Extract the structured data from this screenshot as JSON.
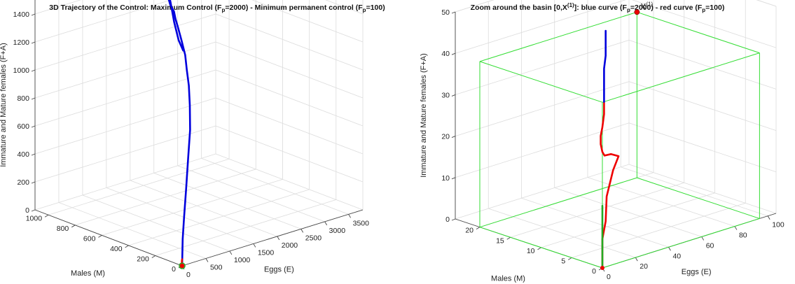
{
  "chart_data": [
    {
      "type": "line",
      "projection": "3d",
      "title_parts": [
        "3D Trajectory of the Control: Maximum Control (F",
        "p",
        "=2000) - Minimum permanent control (F",
        "p",
        "=100)"
      ],
      "xlabel": "Eggs (E)",
      "ylabel": "Males (M)",
      "zlabel": "Immature and Mature females (F+A)",
      "xlim": [
        0,
        3800
      ],
      "ylim": [
        0,
        1100
      ],
      "zlim": [
        0,
        1500
      ],
      "xticks": [
        0,
        500,
        1000,
        1500,
        2000,
        2500,
        3000,
        3500
      ],
      "yticks": [
        0,
        200,
        400,
        600,
        800,
        1000
      ],
      "zticks": [
        0,
        200,
        400,
        600,
        800,
        1000,
        1200,
        1400
      ],
      "grid": true,
      "series": [
        {
          "color": "#0000dd",
          "points": [
            [
              0,
              0,
              0
            ],
            [
              60,
              20,
              60
            ],
            [
              180,
              60,
              150
            ],
            [
              350,
              110,
              270
            ],
            [
              560,
              170,
              420
            ],
            [
              800,
              240,
              590
            ],
            [
              1040,
              310,
              750
            ],
            [
              1230,
              380,
              880
            ],
            [
              1350,
              430,
              990
            ],
            [
              1420,
              470,
              1080
            ],
            [
              1470,
              500,
              1170
            ],
            [
              1480,
              530,
              1260
            ],
            [
              1490,
              560,
              1340
            ],
            [
              1520,
              590,
              1390
            ],
            [
              1600,
              630,
              1420
            ],
            [
              1720,
              700,
              1430
            ],
            [
              1850,
              760,
              1440
            ],
            [
              1930,
              790,
              1460
            ],
            [
              1850,
              760,
              1480
            ],
            [
              1500,
              620,
              1500
            ],
            [
              900,
              380,
              1510
            ],
            [
              350,
              150,
              1520
            ],
            [
              50,
              10,
              1530
            ]
          ]
        },
        {
          "color": "#ee0000",
          "points": [
            [
              0,
              0,
              0
            ],
            [
              20,
              10,
              5
            ],
            [
              45,
              18,
              15
            ],
            [
              30,
              12,
              30
            ],
            [
              5,
              2,
              45
            ]
          ]
        }
      ],
      "markers": [
        {
          "color": "#22aa22",
          "x": 0,
          "y": 0,
          "z": 0
        },
        {
          "color": "#ee0000",
          "x": 0,
          "y": 0,
          "z": 0
        }
      ]
    },
    {
      "type": "line",
      "projection": "3d",
      "title_parts": [
        "Zoom around the basin [0,X",
        "(1)",
        "]: blue curve (F",
        "p",
        "=2000) - red curve (F",
        "p",
        "=100)"
      ],
      "xlabel": "Eggs (E)",
      "ylabel": "Males (M)",
      "zlabel": "Immature and Mature females (F+A)",
      "xlim": [
        0,
        105
      ],
      "ylim": [
        0,
        24
      ],
      "zlim": [
        0,
        50
      ],
      "xticks": [
        0,
        20,
        40,
        60,
        80,
        100
      ],
      "yticks": [
        0,
        5,
        10,
        15,
        20
      ],
      "zticks": [
        0,
        10,
        20,
        30,
        40,
        50
      ],
      "grid": true,
      "box": {
        "x": 95,
        "y": 20,
        "z": 40,
        "color": "#33dd33"
      },
      "point_label": "X",
      "point_label_sup": "(1)",
      "point": {
        "x": 95,
        "y": 20,
        "z": 40,
        "color": "#ee0000"
      },
      "series": [
        {
          "color": "#ee0000",
          "points": [
            [
              0,
              0,
              0
            ],
            [
              0,
              0,
              3
            ],
            [
              0,
              0,
              7
            ],
            [
              2,
              0,
              11
            ],
            [
              10,
              2,
              15
            ],
            [
              25,
              5,
              18
            ],
            [
              32,
              6,
              20
            ],
            [
              20,
              4,
              23
            ],
            [
              5,
              1,
              26
            ],
            [
              0,
              0,
              28
            ],
            [
              -1,
              0,
              30
            ],
            [
              -1,
              0,
              32
            ],
            [
              0,
              0,
              34
            ],
            [
              1,
              0,
              37
            ],
            [
              1,
              0,
              40
            ]
          ]
        },
        {
          "color": "#0000dd",
          "points": [
            [
              1,
              0,
              40
            ],
            [
              1,
              0,
              45
            ],
            [
              1,
              0,
              48
            ],
            [
              2,
              0,
              51
            ],
            [
              2,
              0,
              54
            ],
            [
              2,
              0,
              57
            ]
          ]
        },
        {
          "color": "#22aa22",
          "points": [
            [
              0,
              0,
              0
            ],
            [
              0,
              0,
              15
            ]
          ]
        }
      ]
    }
  ]
}
